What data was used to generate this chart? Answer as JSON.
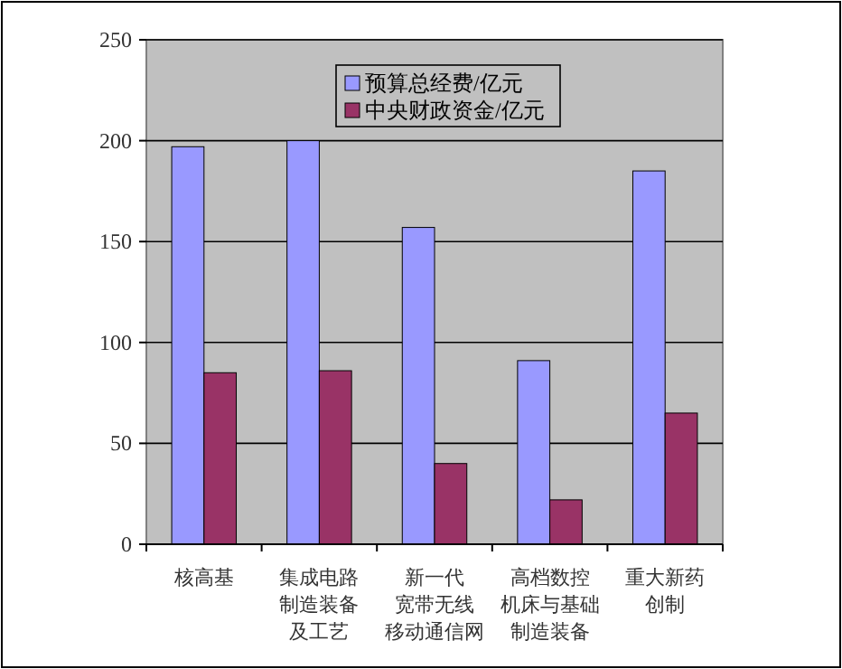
{
  "chart_data": {
    "type": "bar",
    "categories": [
      "核高基",
      "集成电路制造装备及工艺",
      "新一代宽带无线移动通信网",
      "高档数控机床与基础制造装备",
      "重大新药创制"
    ],
    "series": [
      {
        "name": "预算总经费/亿元",
        "color": "#9999ff",
        "values": [
          197,
          200,
          157,
          91,
          185
        ]
      },
      {
        "name": "中央财政资金/亿元",
        "color": "#993366",
        "values": [
          85,
          86,
          40,
          22,
          65
        ]
      }
    ],
    "ylim": [
      0,
      250
    ],
    "yticks": [
      0,
      50,
      100,
      150,
      200,
      250
    ],
    "grid": "y",
    "legend": "top"
  }
}
